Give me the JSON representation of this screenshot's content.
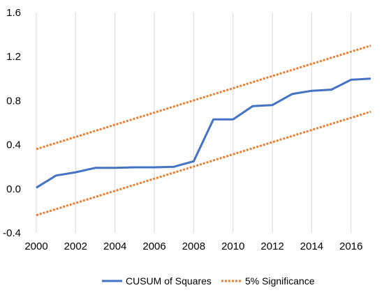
{
  "chart_data": {
    "type": "line",
    "title": "",
    "xlabel": "",
    "ylabel": "",
    "xlim": [
      2000,
      2017
    ],
    "ylim": [
      -0.4,
      1.6
    ],
    "grid": "vertical",
    "legend_position": "bottom",
    "x_ticks": [
      2000,
      2002,
      2004,
      2006,
      2008,
      2010,
      2012,
      2014,
      2016
    ],
    "y_ticks": [
      -0.4,
      0.0,
      0.4,
      0.8,
      1.2,
      1.6
    ],
    "x_tick_labels": [
      "2000",
      "2002",
      "2004",
      "2006",
      "2008",
      "2010",
      "2012",
      "2014",
      "2016"
    ],
    "y_tick_labels": [
      "-0.4",
      "0.0",
      "0.4",
      "0.8",
      "1.2",
      "1.6"
    ],
    "series": [
      {
        "name": "CUSUM of Squares",
        "color": "#4472C4",
        "style": "solid",
        "points": [
          [
            2000,
            0.01
          ],
          [
            2001,
            0.12
          ],
          [
            2002,
            0.15
          ],
          [
            2003,
            0.19
          ],
          [
            2004,
            0.19
          ],
          [
            2005,
            0.195
          ],
          [
            2006,
            0.195
          ],
          [
            2007,
            0.2
          ],
          [
            2008,
            0.25
          ],
          [
            2009,
            0.63
          ],
          [
            2010,
            0.63
          ],
          [
            2011,
            0.75
          ],
          [
            2012,
            0.76
          ],
          [
            2013,
            0.86
          ],
          [
            2014,
            0.89
          ],
          [
            2015,
            0.9
          ],
          [
            2016,
            0.99
          ],
          [
            2017,
            1.0
          ]
        ]
      },
      {
        "name": "5% Significance",
        "color": "#ED7D31",
        "style": "dotted",
        "points": [
          [
            2000,
            0.36
          ],
          [
            2017,
            1.3
          ]
        ]
      },
      {
        "name": "5% Significance",
        "color": "#ED7D31",
        "style": "dotted",
        "in_legend": false,
        "points": [
          [
            2000,
            -0.24
          ],
          [
            2017,
            0.7
          ]
        ]
      }
    ],
    "legend": [
      "CUSUM of Squares",
      "5% Significance"
    ]
  }
}
